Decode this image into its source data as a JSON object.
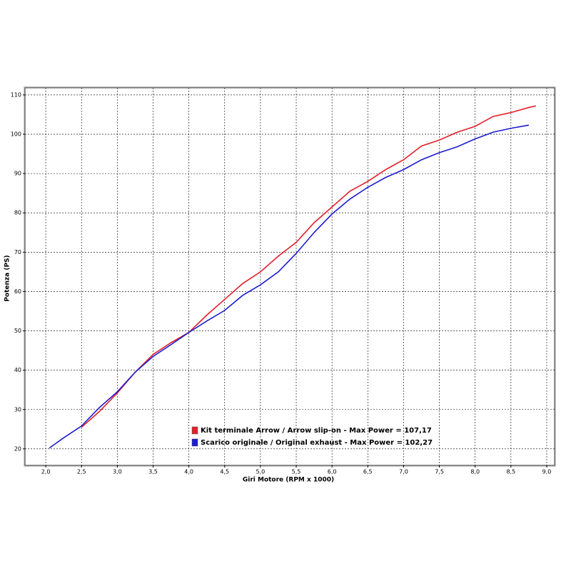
{
  "chart_data": {
    "type": "line",
    "x_label": "Giri Motore (RPM x 1000)",
    "y_label": "Potenza (PS)",
    "x": [
      2.05,
      2.25,
      2.5,
      2.75,
      3.0,
      3.25,
      3.5,
      3.75,
      4.0,
      4.25,
      4.5,
      4.75,
      5.0,
      5.25,
      5.5,
      5.75,
      6.0,
      6.25,
      6.5,
      6.75,
      7.0,
      7.25,
      7.5,
      7.75,
      8.0,
      8.25,
      8.5,
      8.75,
      8.85
    ],
    "series": [
      {
        "name": "Kit terminale Arrow / Arrow slip-on - Max Power = 107,17",
        "color": "#e3202a",
        "values": [
          null,
          null,
          25.5,
          29.5,
          34.2,
          39.5,
          44,
          47,
          49.6,
          54,
          58,
          62,
          65,
          69,
          72.5,
          77.5,
          81.5,
          85.5,
          88,
          91,
          93.5,
          97,
          98.5,
          100.5,
          102,
          104.5,
          105.5,
          106.8,
          107.2
        ]
      },
      {
        "name": "Scarico originale / Original exhaust - Max Power = 102,27",
        "color": "#1c1ccf",
        "values": [
          20.2,
          22.8,
          25.8,
          30.5,
          34.5,
          39.5,
          43.5,
          46.5,
          49.6,
          52.5,
          55.2,
          59,
          61.7,
          65,
          69.7,
          75,
          79.7,
          83.5,
          86.5,
          89,
          91,
          93.5,
          95.3,
          96.8,
          98.8,
          100.5,
          101.5,
          102.3,
          null
        ]
      }
    ],
    "xlim": [
      1.71,
      9.11
    ],
    "ylim": [
      15.8,
      111.8
    ],
    "xticks": [
      {
        "value": 2,
        "label": "2,0"
      },
      {
        "value": 2.5,
        "label": "2,5"
      },
      {
        "value": 3,
        "label": "3,0"
      },
      {
        "value": 3.5,
        "label": "3,5"
      },
      {
        "value": 4,
        "label": "4,0"
      },
      {
        "value": 4.5,
        "label": "4,5"
      },
      {
        "value": 5,
        "label": "5,0"
      },
      {
        "value": 5.5,
        "label": "5,5"
      },
      {
        "value": 6,
        "label": "6,0"
      },
      {
        "value": 6.5,
        "label": "6,5"
      },
      {
        "value": 7,
        "label": "7,0"
      },
      {
        "value": 7.5,
        "label": "7,5"
      },
      {
        "value": 8,
        "label": "8,0"
      },
      {
        "value": 8.5,
        "label": "8,5"
      },
      {
        "value": 9,
        "label": "9,0"
      }
    ],
    "yticks": [
      20,
      30,
      40,
      50,
      60,
      70,
      80,
      90,
      100,
      110
    ],
    "grid": true
  }
}
